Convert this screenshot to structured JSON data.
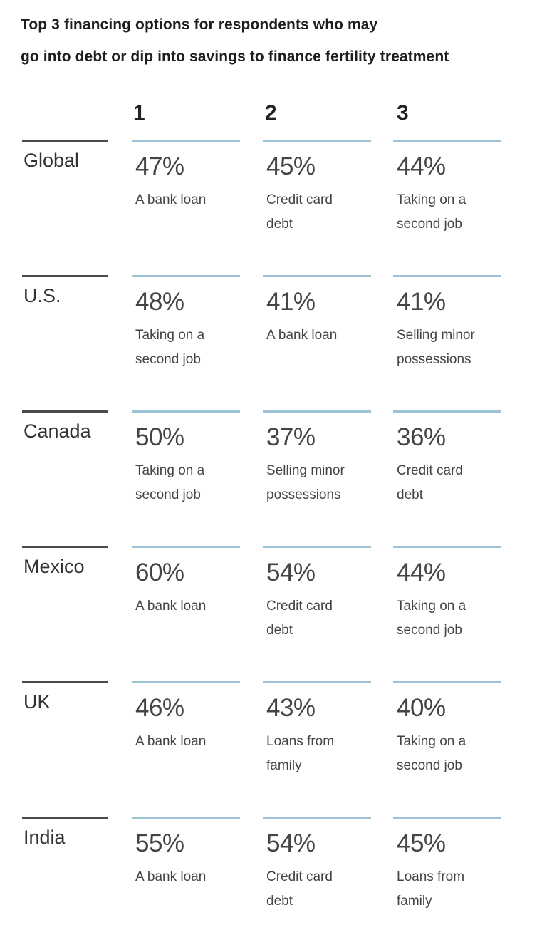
{
  "chart_data": {
    "type": "table",
    "title_lines": [
      "Top 3 financing options for respondents who may",
      "go into debt or dip into savings to finance fertility treatment"
    ],
    "columns": [
      "1",
      "2",
      "3"
    ],
    "rows": [
      {
        "region": "Global",
        "cells": [
          {
            "value": 47,
            "text": "47%",
            "label_lines": [
              "A bank loan"
            ]
          },
          {
            "value": 45,
            "text": "45%",
            "label_lines": [
              "Credit card",
              "debt"
            ]
          },
          {
            "value": 44,
            "text": "44%",
            "label_lines": [
              "Taking on a",
              "second job"
            ]
          }
        ]
      },
      {
        "region": "U.S.",
        "cells": [
          {
            "value": 48,
            "text": "48%",
            "label_lines": [
              "Taking on a",
              "second job"
            ]
          },
          {
            "value": 41,
            "text": "41%",
            "label_lines": [
              "A bank loan"
            ]
          },
          {
            "value": 41,
            "text": "41%",
            "label_lines": [
              "Selling minor",
              "possessions"
            ]
          }
        ]
      },
      {
        "region": "Canada",
        "cells": [
          {
            "value": 50,
            "text": "50%",
            "label_lines": [
              "Taking on a",
              "second job"
            ]
          },
          {
            "value": 37,
            "text": "37%",
            "label_lines": [
              "Selling minor",
              "possessions"
            ]
          },
          {
            "value": 36,
            "text": "36%",
            "label_lines": [
              "Credit card",
              "debt"
            ]
          }
        ]
      },
      {
        "region": "Mexico",
        "cells": [
          {
            "value": 60,
            "text": "60%",
            "label_lines": [
              "A bank loan"
            ]
          },
          {
            "value": 54,
            "text": "54%",
            "label_lines": [
              "Credit card",
              "debt"
            ]
          },
          {
            "value": 44,
            "text": "44%",
            "label_lines": [
              "Taking on a",
              "second job"
            ]
          }
        ]
      },
      {
        "region": "UK",
        "cells": [
          {
            "value": 46,
            "text": "46%",
            "label_lines": [
              "A bank loan"
            ]
          },
          {
            "value": 43,
            "text": "43%",
            "label_lines": [
              "Loans from",
              "family"
            ]
          },
          {
            "value": 40,
            "text": "40%",
            "label_lines": [
              "Taking on a",
              "second job"
            ]
          }
        ]
      },
      {
        "region": "India",
        "cells": [
          {
            "value": 55,
            "text": "55%",
            "label_lines": [
              "A bank loan"
            ]
          },
          {
            "value": 54,
            "text": "54%",
            "label_lines": [
              "Credit card",
              "debt"
            ]
          },
          {
            "value": 45,
            "text": "45%",
            "label_lines": [
              "Loans from",
              "family"
            ]
          }
        ]
      }
    ]
  },
  "colors": {
    "region_rule": "#4a4a4a",
    "cell_rule": "#9ec3d6",
    "text": "#444444",
    "title": "#1e1e1e"
  }
}
